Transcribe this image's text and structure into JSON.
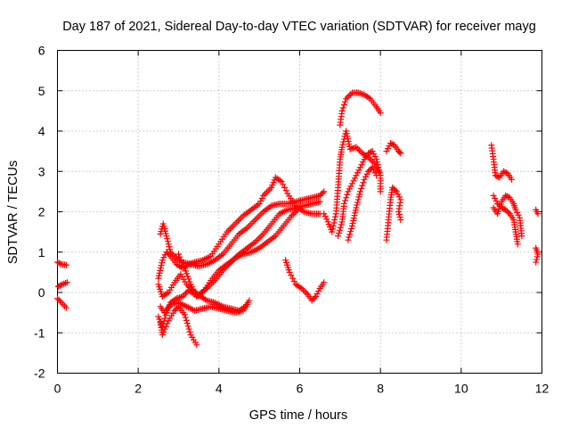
{
  "chart_data": {
    "type": "scatter",
    "title": "Day 187 of 2021, Sidereal Day-to-day VTEC variation (SDTVAR) for receiver mayg",
    "xlabel": "GPS time / hours",
    "ylabel": "SDTVAR / TECUs",
    "xlim": [
      0,
      12
    ],
    "ylim": [
      -2,
      6
    ],
    "xticks": [
      0,
      2,
      4,
      6,
      8,
      10,
      12
    ],
    "yticks": [
      -2,
      -1,
      0,
      1,
      2,
      3,
      4,
      5,
      6
    ],
    "grid": true,
    "marker": "+",
    "color": "#ff0000",
    "segments": [
      [
        [
          0.0,
          0.75
        ],
        [
          0.1,
          0.7
        ],
        [
          0.22,
          0.68
        ]
      ],
      [
        [
          0.02,
          0.15
        ],
        [
          0.12,
          0.2
        ],
        [
          0.24,
          0.25
        ]
      ],
      [
        [
          0.0,
          -0.15
        ],
        [
          0.1,
          -0.25
        ],
        [
          0.22,
          -0.38
        ]
      ],
      [
        [
          2.55,
          1.45
        ],
        [
          2.62,
          1.7
        ],
        [
          2.7,
          1.4
        ],
        [
          2.8,
          1.0
        ],
        [
          2.95,
          0.85
        ],
        [
          3.1,
          0.75
        ],
        [
          3.3,
          0.7
        ],
        [
          3.5,
          0.65
        ],
        [
          3.7,
          0.7
        ],
        [
          3.9,
          0.8
        ],
        [
          4.1,
          0.95
        ],
        [
          4.3,
          1.2
        ],
        [
          4.5,
          1.45
        ],
        [
          4.7,
          1.6
        ],
        [
          4.9,
          1.8
        ],
        [
          5.1,
          2.0
        ],
        [
          5.3,
          2.15
        ],
        [
          5.5,
          2.2
        ],
        [
          5.7,
          2.2
        ],
        [
          5.9,
          2.25
        ],
        [
          6.1,
          2.3
        ],
        [
          6.3,
          2.35
        ],
        [
          6.5,
          2.4
        ],
        [
          6.6,
          2.5
        ]
      ],
      [
        [
          2.5,
          0.35
        ],
        [
          2.6,
          0.8
        ],
        [
          2.7,
          1.0
        ],
        [
          2.8,
          0.9
        ],
        [
          2.95,
          0.7
        ],
        [
          3.1,
          0.6
        ],
        [
          3.25,
          0.7
        ],
        [
          3.4,
          0.75
        ],
        [
          3.6,
          0.8
        ],
        [
          3.8,
          0.9
        ],
        [
          4.0,
          1.2
        ],
        [
          4.2,
          1.5
        ],
        [
          4.4,
          1.7
        ],
        [
          4.6,
          1.9
        ],
        [
          4.8,
          2.05
        ],
        [
          5.0,
          2.2
        ],
        [
          5.1,
          2.4
        ],
        [
          5.3,
          2.6
        ],
        [
          5.4,
          2.85
        ],
        [
          5.55,
          2.75
        ],
        [
          5.7,
          2.45
        ],
        [
          5.9,
          2.15
        ],
        [
          6.1,
          2.0
        ],
        [
          6.3,
          1.95
        ],
        [
          6.5,
          1.95
        ]
      ],
      [
        [
          2.5,
          0.2
        ],
        [
          2.6,
          -0.1
        ],
        [
          2.75,
          0.0
        ],
        [
          2.9,
          0.25
        ],
        [
          3.05,
          0.45
        ],
        [
          3.2,
          0.2
        ],
        [
          3.35,
          0.05
        ],
        [
          3.5,
          -0.05
        ],
        [
          3.7,
          0.1
        ],
        [
          3.9,
          0.3
        ],
        [
          4.1,
          0.55
        ],
        [
          4.3,
          0.75
        ],
        [
          4.5,
          0.95
        ],
        [
          4.7,
          1.1
        ],
        [
          4.9,
          1.25
        ],
        [
          5.1,
          1.45
        ],
        [
          5.3,
          1.7
        ],
        [
          5.5,
          1.95
        ],
        [
          5.7,
          2.05
        ],
        [
          5.9,
          2.1
        ],
        [
          6.1,
          2.15
        ],
        [
          6.3,
          2.2
        ],
        [
          6.5,
          2.25
        ]
      ],
      [
        [
          2.5,
          -0.6
        ],
        [
          2.6,
          -0.85
        ],
        [
          2.7,
          -0.5
        ],
        [
          2.8,
          -0.25
        ],
        [
          2.95,
          -0.15
        ],
        [
          3.1,
          -0.1
        ],
        [
          3.25,
          0.05
        ],
        [
          3.4,
          -0.05
        ],
        [
          3.55,
          -0.1
        ],
        [
          3.7,
          -0.2
        ],
        [
          3.9,
          -0.25
        ],
        [
          4.1,
          -0.35
        ],
        [
          4.3,
          -0.4
        ],
        [
          4.5,
          -0.45
        ],
        [
          4.65,
          -0.35
        ],
        [
          4.75,
          -0.2
        ]
      ],
      [
        [
          2.55,
          -0.75
        ],
        [
          2.6,
          -1.05
        ],
        [
          2.75,
          -0.7
        ],
        [
          2.9,
          -0.45
        ],
        [
          3.0,
          -0.35
        ],
        [
          3.15,
          -0.55
        ],
        [
          3.3,
          -1.05
        ],
        [
          3.45,
          -1.3
        ]
      ],
      [
        [
          2.55,
          -0.35
        ],
        [
          2.65,
          -0.5
        ],
        [
          2.8,
          -0.3
        ],
        [
          3.0,
          -0.25
        ],
        [
          3.2,
          -0.35
        ],
        [
          3.4,
          -0.45
        ],
        [
          3.6,
          -0.4
        ],
        [
          3.8,
          -0.35
        ],
        [
          4.0,
          -0.4
        ],
        [
          4.2,
          -0.45
        ],
        [
          4.4,
          -0.5
        ],
        [
          4.6,
          -0.45
        ],
        [
          4.7,
          -0.3
        ]
      ],
      [
        [
          3.0,
          0.95
        ],
        [
          3.15,
          0.6
        ],
        [
          3.3,
          0.2
        ],
        [
          3.45,
          -0.1
        ],
        [
          3.6,
          0.0
        ],
        [
          3.8,
          0.3
        ],
        [
          4.0,
          0.55
        ],
        [
          4.2,
          0.7
        ],
        [
          4.4,
          0.85
        ],
        [
          4.6,
          0.95
        ],
        [
          4.8,
          1.0
        ],
        [
          5.0,
          1.1
        ],
        [
          5.2,
          1.25
        ],
        [
          5.4,
          1.4
        ],
        [
          5.6,
          1.65
        ],
        [
          5.8,
          1.9
        ],
        [
          5.95,
          2.05
        ]
      ],
      [
        [
          5.65,
          0.8
        ],
        [
          5.75,
          0.5
        ],
        [
          5.9,
          0.2
        ],
        [
          6.05,
          0.1
        ],
        [
          6.2,
          -0.05
        ],
        [
          6.3,
          -0.2
        ],
        [
          6.4,
          -0.1
        ],
        [
          6.5,
          0.1
        ],
        [
          6.6,
          0.25
        ]
      ],
      [
        [
          6.6,
          1.95
        ],
        [
          6.7,
          1.75
        ],
        [
          6.8,
          1.5
        ],
        [
          6.9,
          1.95
        ],
        [
          6.95,
          2.6
        ],
        [
          7.0,
          3.3
        ],
        [
          7.05,
          3.6
        ],
        [
          7.15,
          4.0
        ],
        [
          7.25,
          3.55
        ],
        [
          7.4,
          3.6
        ],
        [
          7.55,
          3.45
        ],
        [
          7.7,
          3.35
        ],
        [
          7.85,
          3.2
        ],
        [
          7.95,
          3.0
        ]
      ],
      [
        [
          6.95,
          1.4
        ],
        [
          7.05,
          1.75
        ],
        [
          7.1,
          2.2
        ],
        [
          7.2,
          2.5
        ],
        [
          7.3,
          2.7
        ],
        [
          7.4,
          2.9
        ],
        [
          7.5,
          3.1
        ],
        [
          7.6,
          3.3
        ],
        [
          7.7,
          3.45
        ],
        [
          7.8,
          3.5
        ],
        [
          7.9,
          3.3
        ],
        [
          8.0,
          2.9
        ],
        [
          8.0,
          2.5
        ]
      ],
      [
        [
          7.2,
          1.3
        ],
        [
          7.3,
          1.65
        ],
        [
          7.4,
          2.1
        ],
        [
          7.5,
          2.5
        ],
        [
          7.6,
          2.8
        ],
        [
          7.7,
          3.0
        ],
        [
          7.8,
          3.1
        ],
        [
          7.9,
          2.9
        ]
      ],
      [
        [
          7.0,
          4.15
        ],
        [
          7.05,
          4.5
        ],
        [
          7.15,
          4.8
        ],
        [
          7.3,
          4.95
        ],
        [
          7.45,
          4.95
        ],
        [
          7.6,
          4.9
        ],
        [
          7.75,
          4.8
        ],
        [
          7.9,
          4.6
        ],
        [
          8.0,
          4.45
        ]
      ],
      [
        [
          8.15,
          3.5
        ],
        [
          8.25,
          3.7
        ],
        [
          8.35,
          3.65
        ],
        [
          8.45,
          3.5
        ],
        [
          8.5,
          3.45
        ]
      ],
      [
        [
          8.15,
          1.3
        ],
        [
          8.2,
          1.8
        ],
        [
          8.25,
          2.3
        ],
        [
          8.3,
          2.6
        ],
        [
          8.4,
          2.5
        ],
        [
          8.5,
          2.3
        ],
        [
          8.45,
          2.0
        ],
        [
          8.5,
          1.8
        ]
      ],
      [
        [
          10.75,
          3.65
        ],
        [
          10.8,
          3.3
        ],
        [
          10.85,
          2.9
        ],
        [
          10.95,
          2.85
        ],
        [
          11.05,
          3.0
        ],
        [
          11.15,
          2.95
        ],
        [
          11.25,
          2.8
        ]
      ],
      [
        [
          10.8,
          2.4
        ],
        [
          10.9,
          2.2
        ],
        [
          11.0,
          2.1
        ],
        [
          11.1,
          2.05
        ],
        [
          11.2,
          1.95
        ],
        [
          11.3,
          1.8
        ],
        [
          11.35,
          1.5
        ],
        [
          11.4,
          1.2
        ]
      ],
      [
        [
          10.8,
          2.1
        ],
        [
          10.9,
          1.95
        ],
        [
          11.0,
          2.25
        ],
        [
          11.1,
          2.4
        ],
        [
          11.2,
          2.35
        ],
        [
          11.3,
          2.2
        ],
        [
          11.35,
          2.05
        ],
        [
          11.45,
          1.85
        ],
        [
          11.5,
          1.4
        ]
      ],
      [
        [
          11.85,
          2.05
        ],
        [
          11.9,
          1.95
        ]
      ],
      [
        [
          11.85,
          1.1
        ],
        [
          11.9,
          0.95
        ],
        [
          11.85,
          0.75
        ]
      ]
    ]
  }
}
